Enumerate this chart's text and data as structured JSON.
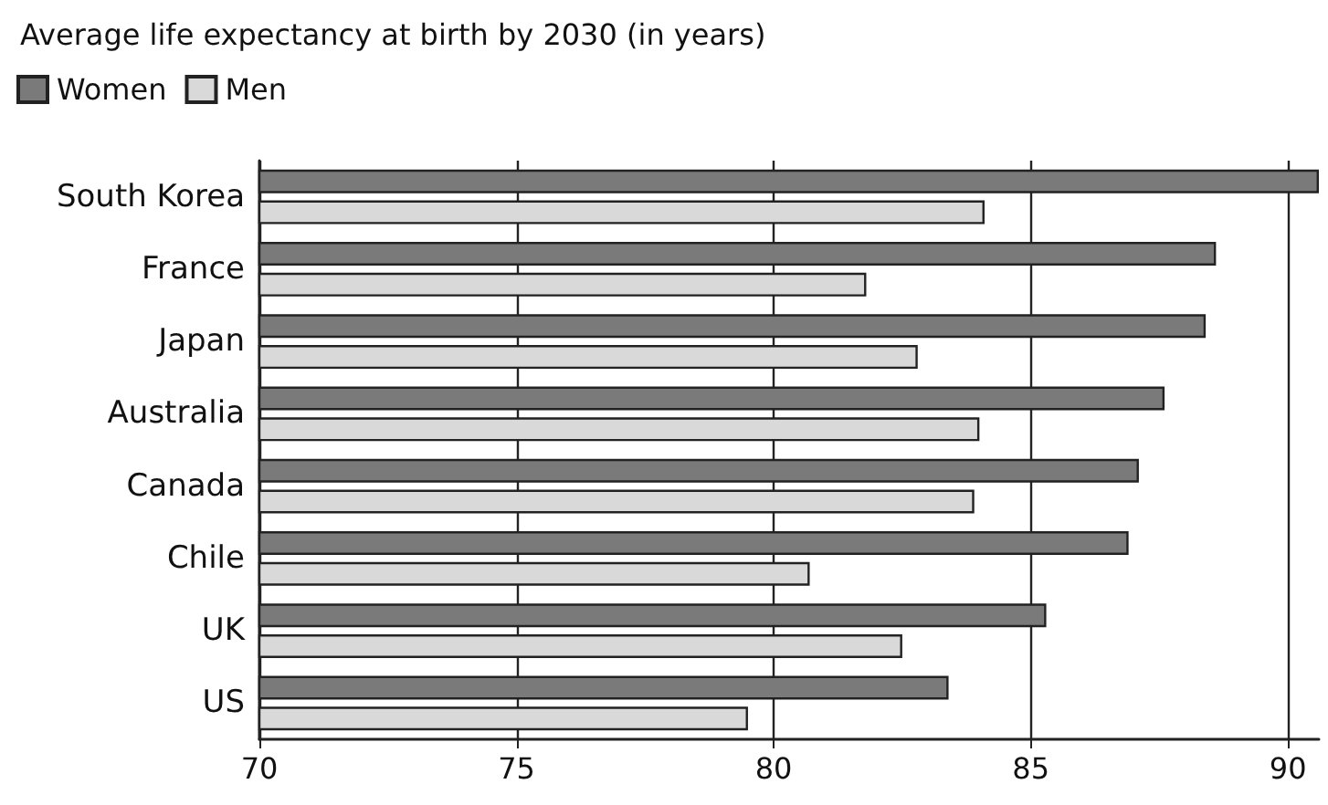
{
  "chart_data": {
    "type": "bar",
    "orientation": "horizontal",
    "title": "Average life expectancy at birth by 2030 (in years)",
    "categories": [
      "South Korea",
      "France",
      "Japan",
      "Australia",
      "Canada",
      "Chile",
      "UK",
      "US"
    ],
    "series": [
      {
        "name": "Women",
        "color": "#7a7a7a",
        "values": [
          90.6,
          88.6,
          88.4,
          87.6,
          87.1,
          86.9,
          85.3,
          83.4
        ]
      },
      {
        "name": "Men",
        "color": "#d9d9d9",
        "values": [
          84.1,
          81.8,
          82.8,
          84.0,
          83.9,
          80.7,
          82.5,
          79.5
        ]
      }
    ],
    "xlim": [
      70,
      90.6
    ],
    "xticks": [
      70,
      75,
      80,
      85,
      90
    ],
    "grid": "x",
    "legend": "top left"
  }
}
